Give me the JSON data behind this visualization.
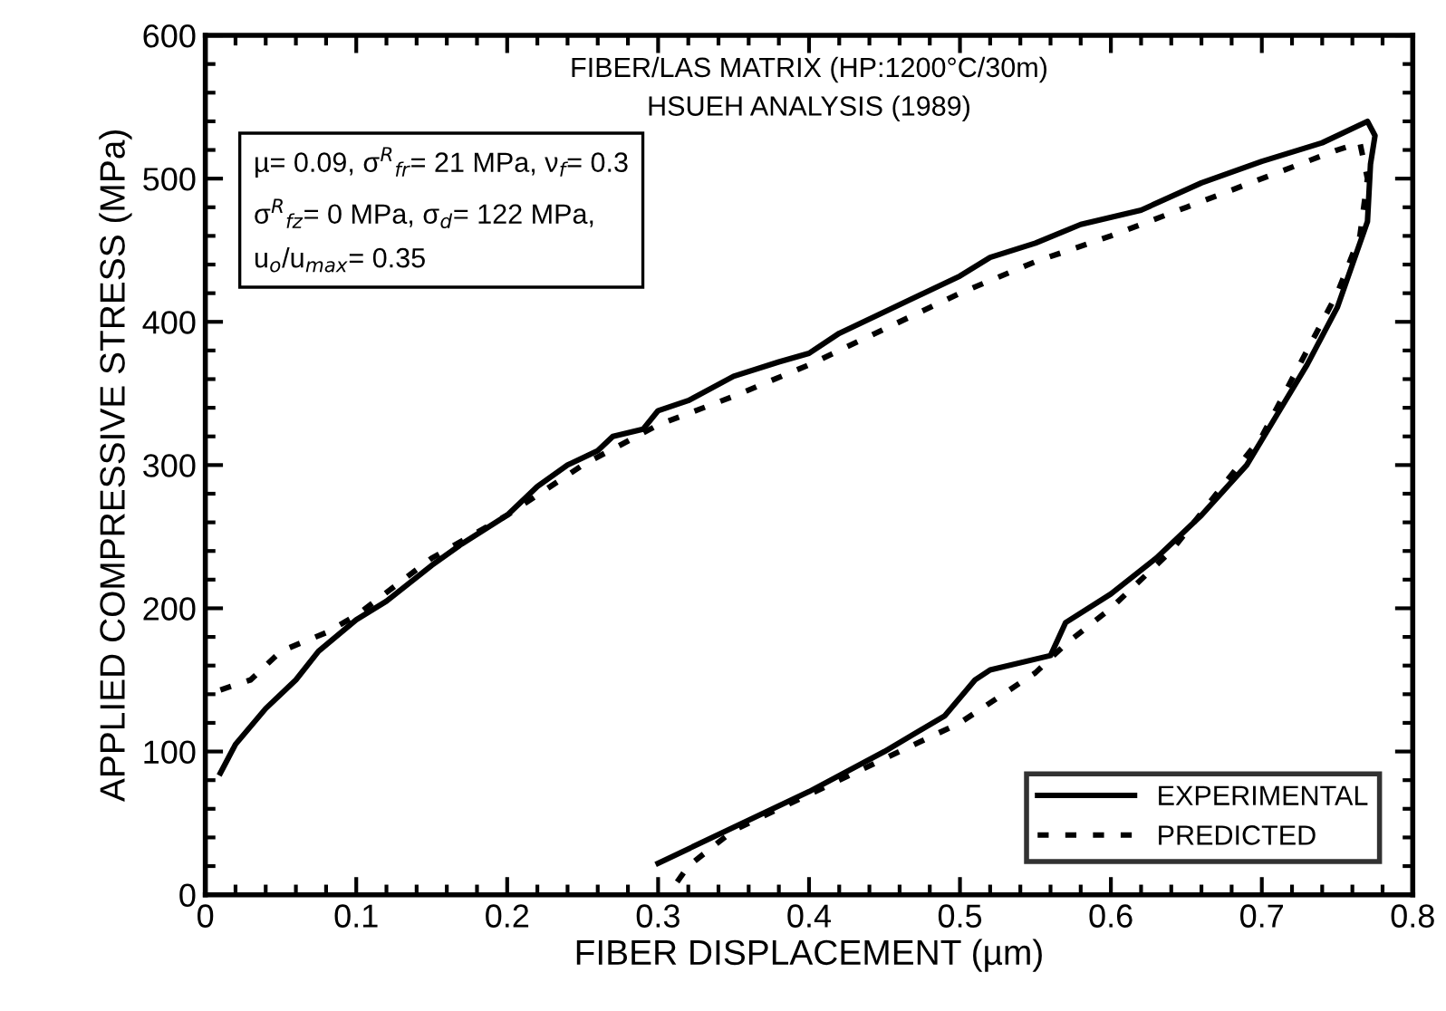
{
  "chart_data": {
    "type": "line",
    "title": "FIBER/LAS MATRIX (HP:1200°C/30m)",
    "subtitle": "HSUEH ANALYSIS (1989)",
    "xlabel": "FIBER DISPLACEMENT (µm)",
    "ylabel": "APPLIED COMPRESSIVE STRESS (MPa)",
    "annotations": [
      "µ= 0.09, σ$^{R}$$_{fr}$= 21 MPa, ν$_{f}$= 0.3",
      "σ$^{R}$$_{fz}$= 0 MPa, σ$_{d}$= 122 MPa,",
      "u$_{o}$/u$_{max}$= 0.35"
    ],
    "xlim": [
      0,
      0.8
    ],
    "xticks": [
      0,
      0.1,
      0.2,
      0.3,
      0.4,
      0.5,
      0.6,
      0.7,
      0.8
    ],
    "ylim": [
      0,
      600
    ],
    "yticks": [
      0,
      100,
      200,
      300,
      400,
      500,
      600
    ],
    "grid": false,
    "legend": "bottom right",
    "series": [
      {
        "name": "EXPERIMENTAL",
        "color": "#000000",
        "line_style": "solid",
        "x": [
          0.01,
          0.02,
          0.04,
          0.06,
          0.075,
          0.1,
          0.12,
          0.15,
          0.17,
          0.2,
          0.22,
          0.24,
          0.26,
          0.27,
          0.29,
          0.3,
          0.32,
          0.35,
          0.38,
          0.4,
          0.42,
          0.45,
          0.5,
          0.52,
          0.55,
          0.58,
          0.62,
          0.66,
          0.7,
          0.74,
          0.77,
          0.775,
          0.772,
          0.77,
          0.76,
          0.75,
          0.73,
          0.71,
          0.69,
          0.66,
          0.63,
          0.6,
          0.57,
          0.56,
          0.52,
          0.51,
          0.49,
          0.45,
          0.4,
          0.35,
          0.3
        ],
        "values": [
          85,
          105,
          130,
          150,
          170,
          192,
          205,
          230,
          245,
          265,
          285,
          300,
          310,
          320,
          325,
          338,
          345,
          362,
          372,
          378,
          392,
          407,
          432,
          445,
          455,
          468,
          478,
          497,
          512,
          525,
          540,
          530,
          510,
          470,
          440,
          410,
          370,
          335,
          300,
          265,
          235,
          210,
          190,
          167,
          157,
          150,
          125,
          100,
          72,
          47,
          22
        ]
      },
      {
        "name": "PREDICTED",
        "color": "#000000",
        "line_style": "dotted",
        "x": [
          0.01,
          0.03,
          0.05,
          0.08,
          0.1,
          0.15,
          0.2,
          0.25,
          0.3,
          0.35,
          0.4,
          0.45,
          0.5,
          0.55,
          0.6,
          0.65,
          0.7,
          0.75,
          0.765,
          0.77,
          0.765,
          0.75,
          0.72,
          0.7,
          0.67,
          0.64,
          0.6,
          0.57,
          0.55,
          0.5,
          0.45,
          0.4,
          0.35,
          0.32,
          0.31
        ],
        "values": [
          143,
          150,
          170,
          183,
          195,
          235,
          265,
          300,
          328,
          348,
          370,
          395,
          420,
          442,
          460,
          480,
          500,
          520,
          525,
          500,
          460,
          420,
          360,
          320,
          280,
          240,
          200,
          175,
          155,
          120,
          95,
          70,
          45,
          20,
          5
        ]
      }
    ]
  }
}
